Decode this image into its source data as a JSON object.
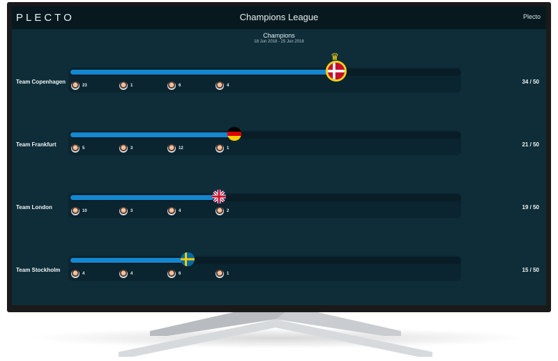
{
  "header": {
    "logo": "PLECTO",
    "title": "Champions League",
    "user": "Plecto"
  },
  "competition": {
    "name": "Champions",
    "dates": "18 Jun 2018 - 25 Jun 2018",
    "target": 50
  },
  "teams": [
    {
      "name": "Team Copenhagen",
      "score_text": "34 / 50",
      "value": 34,
      "flag": "denmark-flag",
      "leader": true,
      "members": [
        "23",
        "1",
        "6",
        "4"
      ]
    },
    {
      "name": "Team Frankfurt",
      "score_text": "21 / 50",
      "value": 21,
      "flag": "germany-flag",
      "leader": false,
      "members": [
        "5",
        "3",
        "12",
        "1"
      ]
    },
    {
      "name": "Team London",
      "score_text": "19 / 50",
      "value": 19,
      "flag": "uk-flag",
      "leader": false,
      "members": [
        "10",
        "3",
        "4",
        "2"
      ]
    },
    {
      "name": "Team Stockholm",
      "score_text": "15 / 50",
      "value": 15,
      "flag": "sweden-flag",
      "leader": false,
      "members": [
        "4",
        "4",
        "6",
        "1"
      ]
    }
  ],
  "colors": {
    "progress": "#1487d0",
    "background": "#0e2d38",
    "header": "#07191f",
    "crown": "#f2d21a"
  }
}
